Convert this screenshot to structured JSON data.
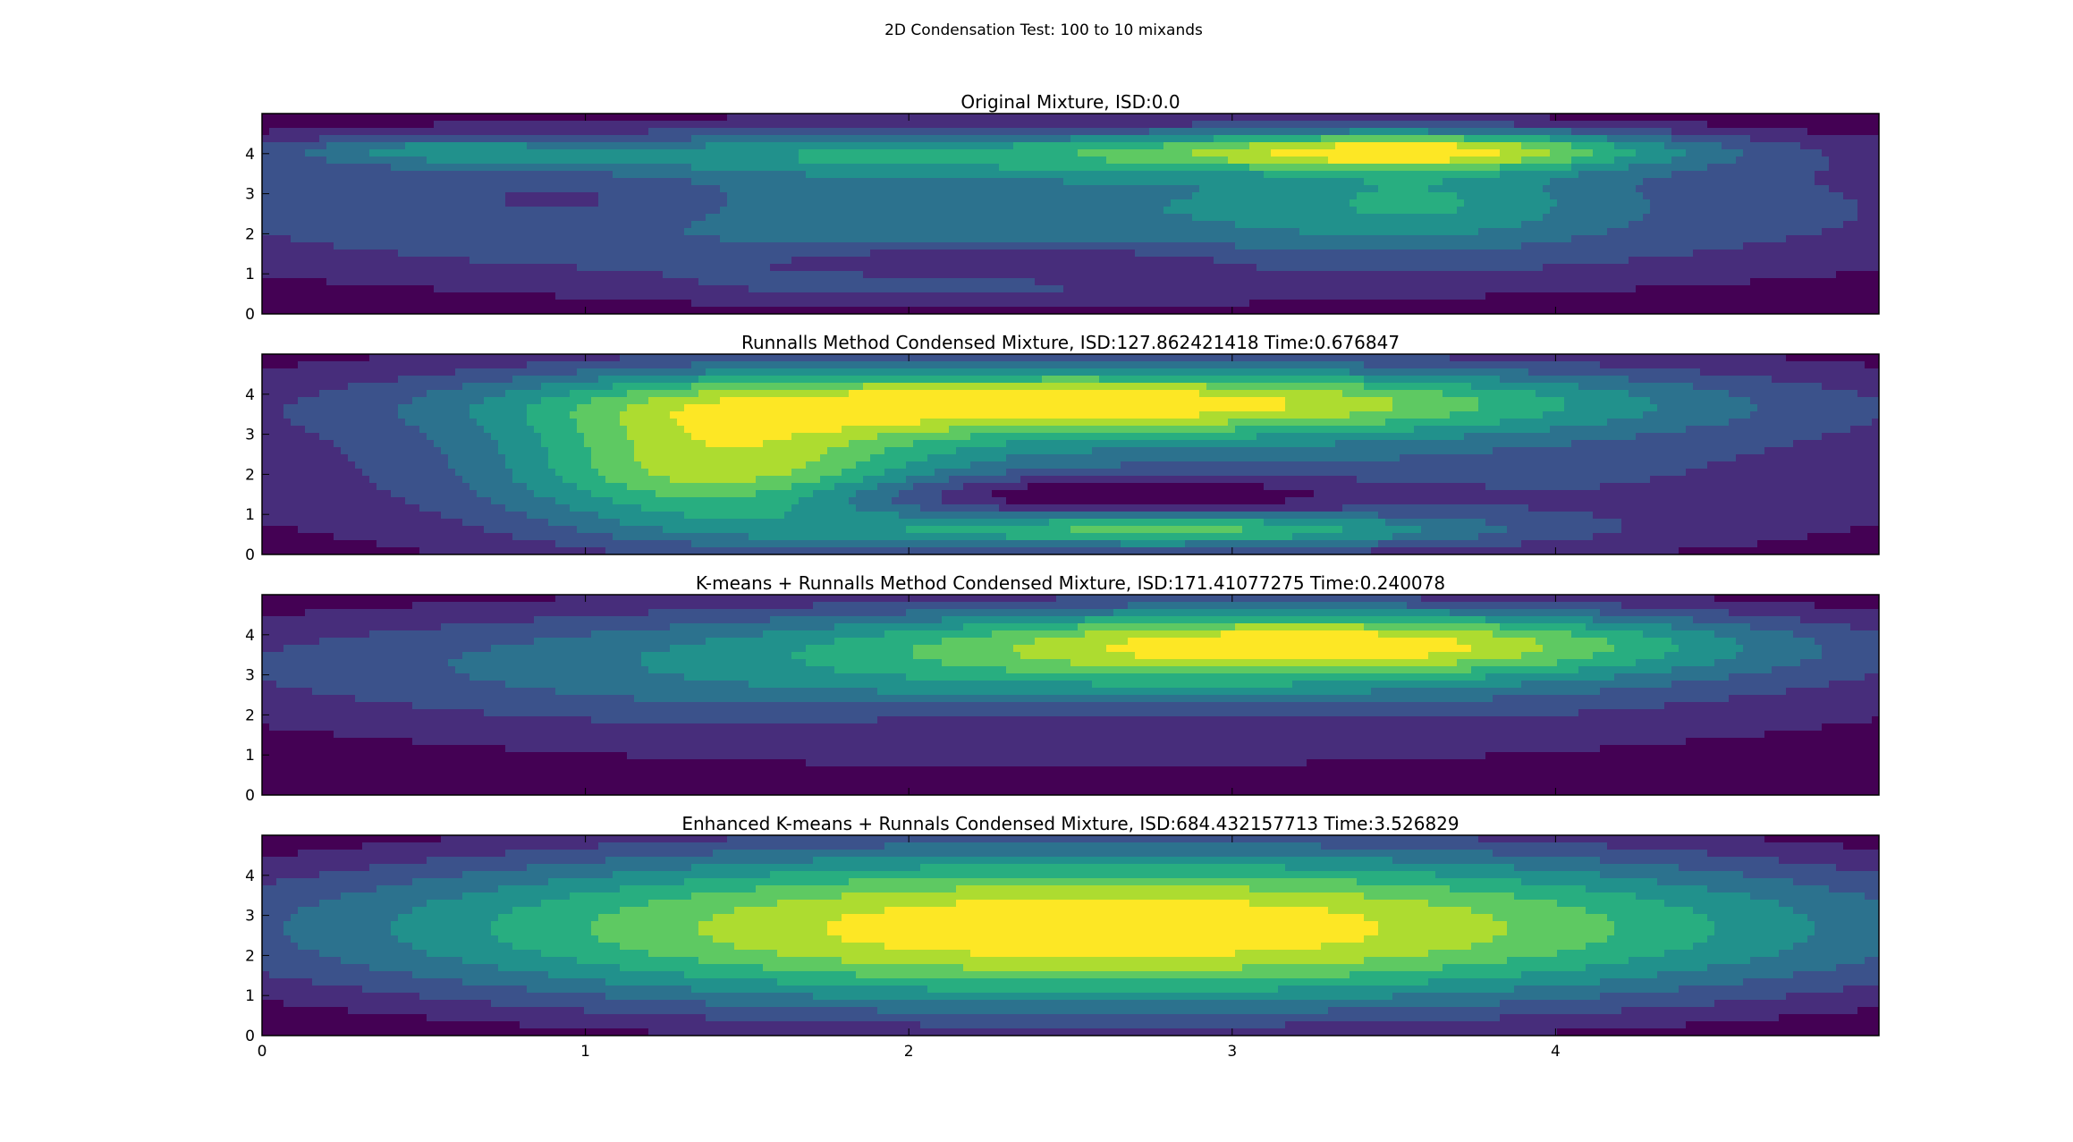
{
  "figure": {
    "suptitle": "2D Condensation Test: 100 to 10 mixands"
  },
  "colormap": [
    "#440154",
    "#472d7b",
    "#3b528b",
    "#2c728e",
    "#21918c",
    "#28ae80",
    "#5ec962",
    "#addc30",
    "#fde725"
  ],
  "chart_data": [
    {
      "type": "heatmap",
      "subtype": "filled-contour",
      "title": "Original Mixture, ISD:0.0",
      "xlim": [
        0,
        5
      ],
      "ylim": [
        0,
        5
      ],
      "xticks": [
        "0",
        "1",
        "2",
        "3",
        "4"
      ],
      "yticks": [
        "0",
        "1",
        "2",
        "3",
        "4"
      ],
      "show_xtick_labels": false,
      "blobs": [
        {
          "x": 2.4,
          "y": 2.6,
          "sx": 2.6,
          "sy": 1.8,
          "w": 1.0
        },
        {
          "x": 3.6,
          "y": 4.1,
          "sx": 0.55,
          "sy": 0.35,
          "w": 0.95
        },
        {
          "x": 2.2,
          "y": 4.0,
          "sx": 1.3,
          "sy": 0.35,
          "w": 0.55
        },
        {
          "x": 3.6,
          "y": 2.8,
          "sx": 0.35,
          "sy": 0.7,
          "w": 0.35
        },
        {
          "x": 0.5,
          "y": 4.1,
          "sx": 0.3,
          "sy": 0.25,
          "w": 0.35
        },
        {
          "x": 2.3,
          "y": 1.3,
          "sx": 0.5,
          "sy": 0.35,
          "w": -0.35
        },
        {
          "x": 1.0,
          "y": 2.8,
          "sx": 0.35,
          "sy": 0.5,
          "w": -0.25
        },
        {
          "x": 2.0,
          "y": 0.7,
          "sx": 0.5,
          "sy": 0.3,
          "w": 0.2
        }
      ]
    },
    {
      "type": "heatmap",
      "subtype": "filled-contour",
      "title": "Runnalls Method Condensed Mixture, ISD:127.862421418 Time:0.676847",
      "xlim": [
        0,
        5
      ],
      "ylim": [
        0,
        5
      ],
      "xticks": [
        "0",
        "1",
        "2",
        "3",
        "4"
      ],
      "yticks": [
        "0",
        "1",
        "2",
        "3",
        "4"
      ],
      "show_xtick_labels": false,
      "blobs": [
        {
          "x": 2.6,
          "y": 3.8,
          "sx": 1.2,
          "sy": 0.6,
          "w": 1.0
        },
        {
          "x": 1.4,
          "y": 2.2,
          "sx": 0.45,
          "sy": 1.2,
          "w": 0.8
        },
        {
          "x": 2.8,
          "y": 0.6,
          "sx": 0.7,
          "sy": 0.3,
          "w": 0.7
        },
        {
          "x": 2.5,
          "y": 2.5,
          "sx": 2.3,
          "sy": 2.2,
          "w": 0.55
        },
        {
          "x": 2.6,
          "y": 1.5,
          "sx": 0.6,
          "sy": 0.35,
          "w": -0.45
        }
      ]
    },
    {
      "type": "heatmap",
      "subtype": "filled-contour",
      "title": "K-means + Runnalls Method Condensed Mixture, ISD:171.41077275 Time:0.240078",
      "xlim": [
        0,
        5
      ],
      "ylim": [
        0,
        5
      ],
      "xticks": [
        "0",
        "1",
        "2",
        "3",
        "4"
      ],
      "yticks": [
        "0",
        "1",
        "2",
        "3",
        "4"
      ],
      "show_xtick_labels": false,
      "blobs": [
        {
          "x": 3.35,
          "y": 3.8,
          "sx": 0.9,
          "sy": 0.6,
          "w": 1.0
        },
        {
          "x": 2.2,
          "y": 3.4,
          "sx": 1.8,
          "sy": 1.0,
          "w": 0.55
        },
        {
          "x": 2.5,
          "y": 2.5,
          "sx": 2.4,
          "sy": 1.9,
          "w": 0.45
        },
        {
          "x": 2.6,
          "y": 1.8,
          "sx": 0.6,
          "sy": 0.35,
          "w": -0.2
        }
      ]
    },
    {
      "type": "heatmap",
      "subtype": "filled-contour",
      "title": "Enhanced K-means + Runnals Condensed Mixture, ISD:684.432157713 Time:3.526829",
      "xlim": [
        0,
        5
      ],
      "ylim": [
        0,
        5
      ],
      "xticks": [
        "0",
        "1",
        "2",
        "3",
        "4"
      ],
      "yticks": [
        "0",
        "1",
        "2",
        "3",
        "4"
      ],
      "show_xtick_labels": true,
      "blobs": [
        {
          "x": 2.6,
          "y": 2.7,
          "sx": 1.8,
          "sy": 1.5,
          "w": 1.0
        },
        {
          "x": 2.6,
          "y": 2.5,
          "sx": 3.2,
          "sy": 2.8,
          "w": 0.25
        }
      ]
    }
  ]
}
